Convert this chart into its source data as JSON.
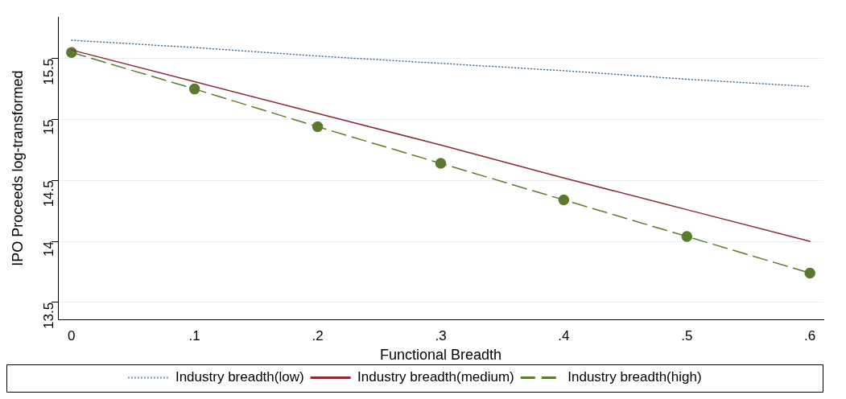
{
  "chart_data": {
    "type": "line",
    "xlabel": "Functional Breadth",
    "ylabel": "IPO Proceeds log-transformed",
    "x": [
      0,
      0.1,
      0.2,
      0.3,
      0.4,
      0.5,
      0.6
    ],
    "series": [
      {
        "name": "Industry breadth(low)",
        "color": "#4a6f9a",
        "values": [
          15.65,
          15.59,
          15.52,
          15.46,
          15.4,
          15.33,
          15.27
        ],
        "line_style": "dotted",
        "marker": "none"
      },
      {
        "name": "Industry breadth(medium)",
        "color": "#8c2a35",
        "values": [
          15.57,
          15.31,
          15.05,
          14.79,
          14.52,
          14.26,
          14.0
        ],
        "line_style": "solid",
        "marker": "none"
      },
      {
        "name": "Industry breadth(high)",
        "color": "#5a7a2e",
        "values": [
          15.55,
          15.25,
          14.94,
          14.64,
          14.34,
          14.04,
          13.74
        ],
        "line_style": "dashed",
        "marker": "circle"
      }
    ],
    "xlim": [
      -0.011,
      0.611
    ],
    "xticks": [
      0,
      {
        "value": 0.1,
        "label": ".1"
      },
      {
        "value": 0.2,
        "label": ".2"
      },
      {
        "value": 0.3,
        "label": ".3"
      },
      {
        "value": 0.4,
        "label": ".4"
      },
      {
        "value": 0.5,
        "label": ".5"
      },
      {
        "value": 0.6,
        "label": ".6"
      }
    ],
    "ylim": [
      13.36,
      15.84
    ],
    "yticks": [
      13.5,
      14,
      14.5,
      15,
      15.5
    ],
    "grid": "y",
    "legend": "bottom"
  }
}
